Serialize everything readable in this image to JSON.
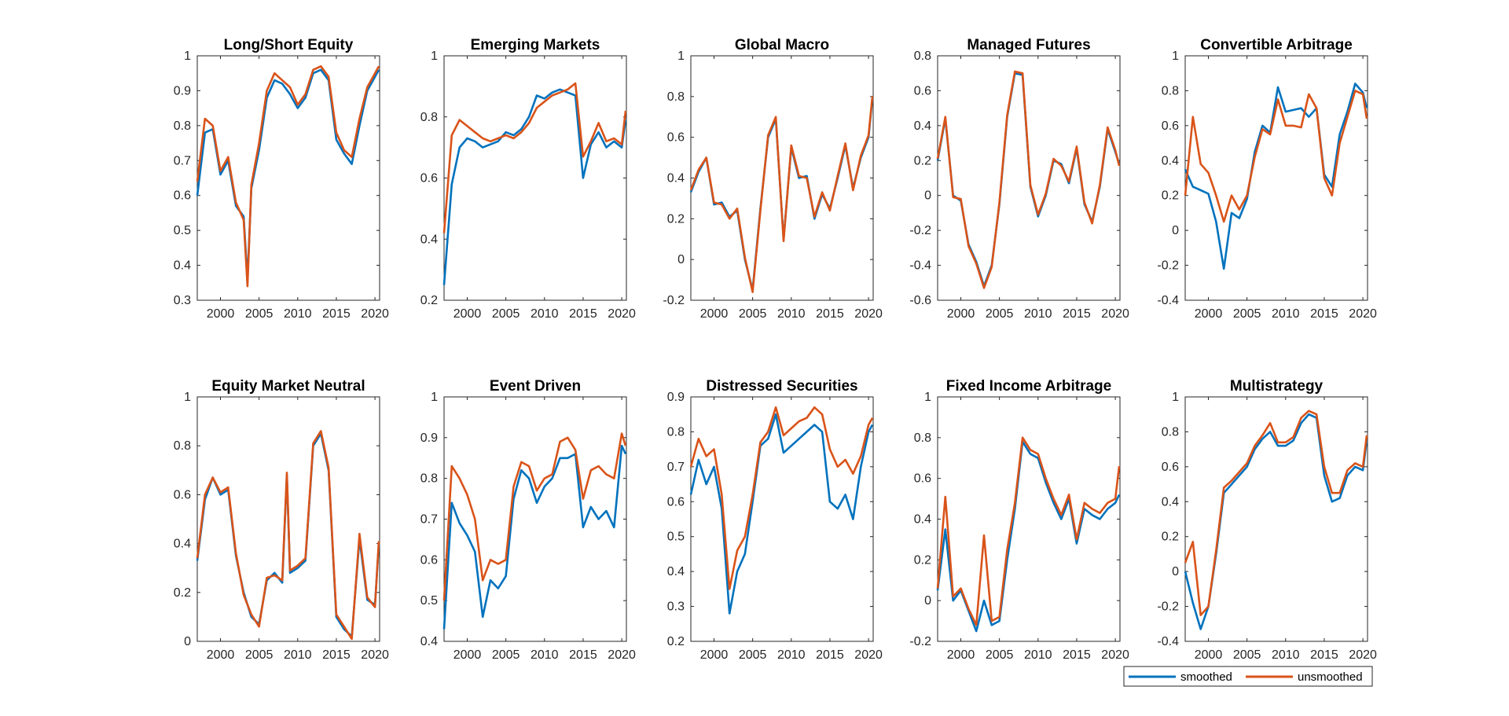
{
  "figure": {
    "colors": {
      "smoothed": "#0072BD",
      "unsmoothed": "#D95319",
      "axis": "#262626",
      "background": "#FFFFFF"
    },
    "legend": {
      "position": "bottom-right",
      "entries": [
        "smoothed",
        "unsmoothed"
      ]
    },
    "xticks": [
      2000,
      2005,
      2010,
      2015,
      2020
    ],
    "xlim": [
      1997,
      2020.6
    ]
  },
  "chart_data": [
    {
      "type": "line",
      "title": "Long/Short Equity",
      "xlim": [
        1997,
        2020.6
      ],
      "ylim": [
        0.3,
        1
      ],
      "yticks": [
        0.3,
        0.4,
        0.5,
        0.6,
        0.7,
        0.8,
        0.9,
        1
      ],
      "x": [
        1997,
        1998,
        1999,
        2000,
        2001,
        2002,
        2003,
        2003.5,
        2004,
        2005,
        2006,
        2007,
        2008,
        2009,
        2010,
        2011,
        2012,
        2013,
        2014,
        2015,
        2016,
        2017,
        2018,
        2019,
        2020,
        2020.5
      ],
      "series": [
        {
          "name": "smoothed",
          "values": [
            0.6,
            0.78,
            0.79,
            0.66,
            0.7,
            0.57,
            0.54,
            0.36,
            0.62,
            0.73,
            0.88,
            0.93,
            0.92,
            0.89,
            0.85,
            0.88,
            0.95,
            0.96,
            0.93,
            0.76,
            0.72,
            0.69,
            0.8,
            0.9,
            0.94,
            0.96
          ]
        },
        {
          "name": "unsmoothed",
          "values": [
            0.64,
            0.82,
            0.8,
            0.67,
            0.71,
            0.58,
            0.53,
            0.34,
            0.63,
            0.75,
            0.9,
            0.95,
            0.93,
            0.91,
            0.86,
            0.89,
            0.96,
            0.97,
            0.94,
            0.78,
            0.73,
            0.71,
            0.82,
            0.91,
            0.95,
            0.97
          ]
        }
      ]
    },
    {
      "type": "line",
      "title": "Emerging Markets",
      "xlim": [
        1997,
        2020.6
      ],
      "ylim": [
        0.2,
        1
      ],
      "yticks": [
        0.2,
        0.4,
        0.6,
        0.8,
        1
      ],
      "x": [
        1997,
        1998,
        1999,
        2000,
        2001,
        2002,
        2003,
        2004,
        2005,
        2006,
        2007,
        2008,
        2009,
        2010,
        2011,
        2012,
        2013,
        2014,
        2015,
        2016,
        2017,
        2018,
        2019,
        2020,
        2020.5
      ],
      "series": [
        {
          "name": "smoothed",
          "values": [
            0.25,
            0.58,
            0.7,
            0.73,
            0.72,
            0.7,
            0.71,
            0.72,
            0.75,
            0.74,
            0.76,
            0.8,
            0.87,
            0.86,
            0.88,
            0.89,
            0.88,
            0.87,
            0.6,
            0.71,
            0.75,
            0.7,
            0.72,
            0.7,
            0.79
          ]
        },
        {
          "name": "unsmoothed",
          "values": [
            0.42,
            0.74,
            0.79,
            0.77,
            0.75,
            0.73,
            0.72,
            0.73,
            0.74,
            0.73,
            0.75,
            0.78,
            0.83,
            0.85,
            0.87,
            0.88,
            0.89,
            0.91,
            0.67,
            0.72,
            0.78,
            0.72,
            0.73,
            0.71,
            0.82
          ]
        }
      ]
    },
    {
      "type": "line",
      "title": "Global Macro",
      "xlim": [
        1997,
        2020.6
      ],
      "ylim": [
        -0.2,
        1
      ],
      "yticks": [
        -0.2,
        0,
        0.2,
        0.4,
        0.6,
        0.8,
        1
      ],
      "x": [
        1997,
        1998,
        1999,
        2000,
        2001,
        2002,
        2003,
        2004,
        2005,
        2006,
        2007,
        2008,
        2009,
        2010,
        2011,
        2012,
        2013,
        2014,
        2015,
        2016,
        2017,
        2018,
        2019,
        2020,
        2020.5
      ],
      "series": [
        {
          "name": "smoothed",
          "values": [
            0.33,
            0.43,
            0.5,
            0.27,
            0.28,
            0.21,
            0.24,
            0.0,
            -0.15,
            0.25,
            0.6,
            0.69,
            0.1,
            0.55,
            0.4,
            0.41,
            0.2,
            0.32,
            0.25,
            0.4,
            0.56,
            0.35,
            0.5,
            0.6,
            0.79
          ]
        },
        {
          "name": "unsmoothed",
          "values": [
            0.34,
            0.44,
            0.5,
            0.28,
            0.27,
            0.2,
            0.25,
            0.01,
            -0.16,
            0.24,
            0.61,
            0.7,
            0.09,
            0.56,
            0.41,
            0.4,
            0.21,
            0.33,
            0.24,
            0.41,
            0.57,
            0.34,
            0.51,
            0.61,
            0.8
          ]
        }
      ]
    },
    {
      "type": "line",
      "title": "Managed Futures",
      "xlim": [
        1997,
        2020.6
      ],
      "ylim": [
        -0.6,
        0.8
      ],
      "yticks": [
        -0.6,
        -0.4,
        -0.2,
        0,
        0.2,
        0.4,
        0.6,
        0.8
      ],
      "x": [
        1997,
        1998,
        1999,
        2000,
        2001,
        2002,
        2003,
        2004,
        2005,
        2006,
        2007,
        2008,
        2009,
        2010,
        2011,
        2012,
        2013,
        2014,
        2015,
        2016,
        2017,
        2018,
        2019,
        2020,
        2020.5
      ],
      "series": [
        {
          "name": "smoothed",
          "values": [
            0.2,
            0.44,
            0.0,
            -0.03,
            -0.28,
            -0.38,
            -0.52,
            -0.4,
            -0.05,
            0.45,
            0.7,
            0.69,
            0.05,
            -0.12,
            0.0,
            0.2,
            0.18,
            0.07,
            0.27,
            -0.05,
            -0.15,
            0.05,
            0.38,
            0.25,
            0.18
          ]
        },
        {
          "name": "unsmoothed",
          "values": [
            0.21,
            0.45,
            -0.01,
            -0.02,
            -0.29,
            -0.39,
            -0.53,
            -0.41,
            -0.04,
            0.46,
            0.71,
            0.7,
            0.06,
            -0.11,
            0.01,
            0.21,
            0.17,
            0.08,
            0.28,
            -0.04,
            -0.16,
            0.06,
            0.39,
            0.26,
            0.17
          ]
        }
      ]
    },
    {
      "type": "line",
      "title": "Convertible Arbitrage",
      "xlim": [
        1997,
        2020.6
      ],
      "ylim": [
        -0.4,
        1
      ],
      "yticks": [
        -0.4,
        -0.2,
        0,
        0.2,
        0.4,
        0.6,
        0.8,
        1
      ],
      "x": [
        1997,
        1998,
        1999,
        2000,
        2001,
        2002,
        2003,
        2004,
        2005,
        2006,
        2007,
        2008,
        2009,
        2010,
        2011,
        2012,
        2013,
        2014,
        2015,
        2016,
        2017,
        2018,
        2019,
        2020,
        2020.5
      ],
      "series": [
        {
          "name": "smoothed",
          "values": [
            0.35,
            0.25,
            0.23,
            0.21,
            0.05,
            -0.22,
            0.1,
            0.07,
            0.18,
            0.45,
            0.6,
            0.56,
            0.82,
            0.68,
            0.69,
            0.7,
            0.65,
            0.7,
            0.32,
            0.25,
            0.55,
            0.68,
            0.84,
            0.79,
            0.7
          ]
        },
        {
          "name": "unsmoothed",
          "values": [
            0.2,
            0.65,
            0.38,
            0.33,
            0.2,
            0.05,
            0.2,
            0.12,
            0.2,
            0.42,
            0.58,
            0.55,
            0.75,
            0.6,
            0.6,
            0.59,
            0.78,
            0.7,
            0.3,
            0.2,
            0.5,
            0.65,
            0.8,
            0.78,
            0.64
          ]
        }
      ]
    },
    {
      "type": "line",
      "title": "Equity Market Neutral",
      "xlim": [
        1997,
        2020.6
      ],
      "ylim": [
        0,
        1
      ],
      "yticks": [
        0,
        0.2,
        0.4,
        0.6,
        0.8,
        1
      ],
      "x": [
        1997,
        1998,
        1999,
        2000,
        2001,
        2002,
        2003,
        2004,
        2005,
        2006,
        2007,
        2008,
        2008.6,
        2009,
        2010,
        2011,
        2012,
        2013,
        2014,
        2015,
        2016,
        2017,
        2018,
        2019,
        2020,
        2020.5
      ],
      "series": [
        {
          "name": "smoothed",
          "values": [
            0.33,
            0.58,
            0.67,
            0.6,
            0.62,
            0.35,
            0.2,
            0.1,
            0.07,
            0.25,
            0.28,
            0.24,
            0.68,
            0.28,
            0.3,
            0.33,
            0.8,
            0.85,
            0.7,
            0.1,
            0.05,
            0.02,
            0.42,
            0.17,
            0.15,
            0.4
          ]
        },
        {
          "name": "unsmoothed",
          "values": [
            0.34,
            0.6,
            0.67,
            0.61,
            0.63,
            0.36,
            0.19,
            0.11,
            0.06,
            0.26,
            0.27,
            0.25,
            0.69,
            0.29,
            0.31,
            0.34,
            0.81,
            0.86,
            0.71,
            0.11,
            0.06,
            0.01,
            0.44,
            0.18,
            0.14,
            0.41
          ]
        }
      ]
    },
    {
      "type": "line",
      "title": "Event Driven",
      "xlim": [
        1997,
        2020.6
      ],
      "ylim": [
        0.4,
        1
      ],
      "yticks": [
        0.4,
        0.5,
        0.6,
        0.7,
        0.8,
        0.9,
        1
      ],
      "x": [
        1997,
        1998,
        1999,
        2000,
        2001,
        2002,
        2003,
        2004,
        2005,
        2006,
        2007,
        2008,
        2009,
        2010,
        2011,
        2012,
        2013,
        2014,
        2015,
        2016,
        2017,
        2018,
        2019,
        2020,
        2020.5
      ],
      "series": [
        {
          "name": "smoothed",
          "values": [
            0.43,
            0.74,
            0.69,
            0.66,
            0.62,
            0.46,
            0.55,
            0.53,
            0.56,
            0.75,
            0.82,
            0.8,
            0.74,
            0.78,
            0.8,
            0.85,
            0.85,
            0.86,
            0.68,
            0.73,
            0.7,
            0.72,
            0.68,
            0.88,
            0.86
          ]
        },
        {
          "name": "unsmoothed",
          "values": [
            0.5,
            0.83,
            0.8,
            0.76,
            0.7,
            0.55,
            0.6,
            0.59,
            0.6,
            0.78,
            0.84,
            0.83,
            0.77,
            0.8,
            0.81,
            0.89,
            0.9,
            0.87,
            0.75,
            0.82,
            0.83,
            0.81,
            0.8,
            0.91,
            0.88
          ]
        }
      ]
    },
    {
      "type": "line",
      "title": "Distressed Securities",
      "xlim": [
        1997,
        2020.6
      ],
      "ylim": [
        0.2,
        0.9
      ],
      "yticks": [
        0.2,
        0.3,
        0.4,
        0.5,
        0.6,
        0.7,
        0.8,
        0.9
      ],
      "x": [
        1997,
        1998,
        1999,
        2000,
        2001,
        2002,
        2003,
        2004,
        2005,
        2006,
        2007,
        2008,
        2009,
        2010,
        2011,
        2012,
        2013,
        2014,
        2015,
        2016,
        2017,
        2018,
        2019,
        2020,
        2020.5
      ],
      "series": [
        {
          "name": "smoothed",
          "values": [
            0.62,
            0.72,
            0.65,
            0.7,
            0.58,
            0.28,
            0.4,
            0.45,
            0.6,
            0.76,
            0.78,
            0.85,
            0.74,
            0.76,
            0.78,
            0.8,
            0.82,
            0.8,
            0.6,
            0.58,
            0.62,
            0.55,
            0.7,
            0.8,
            0.82
          ]
        },
        {
          "name": "unsmoothed",
          "values": [
            0.7,
            0.78,
            0.73,
            0.75,
            0.62,
            0.35,
            0.46,
            0.5,
            0.62,
            0.77,
            0.8,
            0.87,
            0.79,
            0.81,
            0.83,
            0.84,
            0.87,
            0.85,
            0.75,
            0.7,
            0.72,
            0.68,
            0.73,
            0.82,
            0.84
          ]
        }
      ]
    },
    {
      "type": "line",
      "title": "Fixed Income Arbitrage",
      "xlim": [
        1997,
        2020.6
      ],
      "ylim": [
        -0.2,
        1
      ],
      "yticks": [
        -0.2,
        0,
        0.2,
        0.4,
        0.6,
        0.8,
        1
      ],
      "x": [
        1997,
        1998,
        1999,
        2000,
        2001,
        2002,
        2003,
        2004,
        2005,
        2006,
        2007,
        2008,
        2009,
        2010,
        2011,
        2012,
        2013,
        2014,
        2015,
        2016,
        2017,
        2018,
        2019,
        2020,
        2020.5
      ],
      "series": [
        {
          "name": "smoothed",
          "values": [
            0.05,
            0.35,
            0.0,
            0.05,
            -0.05,
            -0.15,
            0.0,
            -0.12,
            -0.1,
            0.2,
            0.45,
            0.78,
            0.72,
            0.7,
            0.58,
            0.48,
            0.4,
            0.5,
            0.28,
            0.45,
            0.42,
            0.4,
            0.45,
            0.48,
            0.52
          ]
        },
        {
          "name": "unsmoothed",
          "values": [
            0.06,
            0.51,
            0.02,
            0.06,
            -0.04,
            -0.12,
            0.32,
            -0.1,
            -0.08,
            0.25,
            0.48,
            0.8,
            0.74,
            0.72,
            0.6,
            0.5,
            0.42,
            0.52,
            0.3,
            0.48,
            0.45,
            0.43,
            0.48,
            0.5,
            0.66
          ]
        }
      ]
    },
    {
      "type": "line",
      "title": "Multistrategy",
      "xlim": [
        1997,
        2020.6
      ],
      "ylim": [
        -0.4,
        1
      ],
      "yticks": [
        -0.4,
        -0.2,
        0,
        0.2,
        0.4,
        0.6,
        0.8,
        1
      ],
      "x": [
        1997,
        1998,
        1999,
        2000,
        2001,
        2002,
        2003,
        2004,
        2005,
        2006,
        2007,
        2008,
        2009,
        2010,
        2011,
        2012,
        2013,
        2014,
        2015,
        2016,
        2017,
        2018,
        2019,
        2020,
        2020.5
      ],
      "series": [
        {
          "name": "smoothed",
          "values": [
            0.0,
            -0.18,
            -0.33,
            -0.2,
            0.1,
            0.45,
            0.5,
            0.55,
            0.6,
            0.7,
            0.76,
            0.8,
            0.72,
            0.72,
            0.75,
            0.85,
            0.9,
            0.88,
            0.55,
            0.4,
            0.42,
            0.55,
            0.6,
            0.58,
            0.75
          ]
        },
        {
          "name": "unsmoothed",
          "values": [
            0.05,
            0.17,
            -0.25,
            -0.2,
            0.12,
            0.48,
            0.52,
            0.57,
            0.62,
            0.72,
            0.78,
            0.85,
            0.74,
            0.74,
            0.77,
            0.88,
            0.92,
            0.9,
            0.6,
            0.45,
            0.45,
            0.58,
            0.62,
            0.6,
            0.78
          ]
        }
      ]
    }
  ]
}
